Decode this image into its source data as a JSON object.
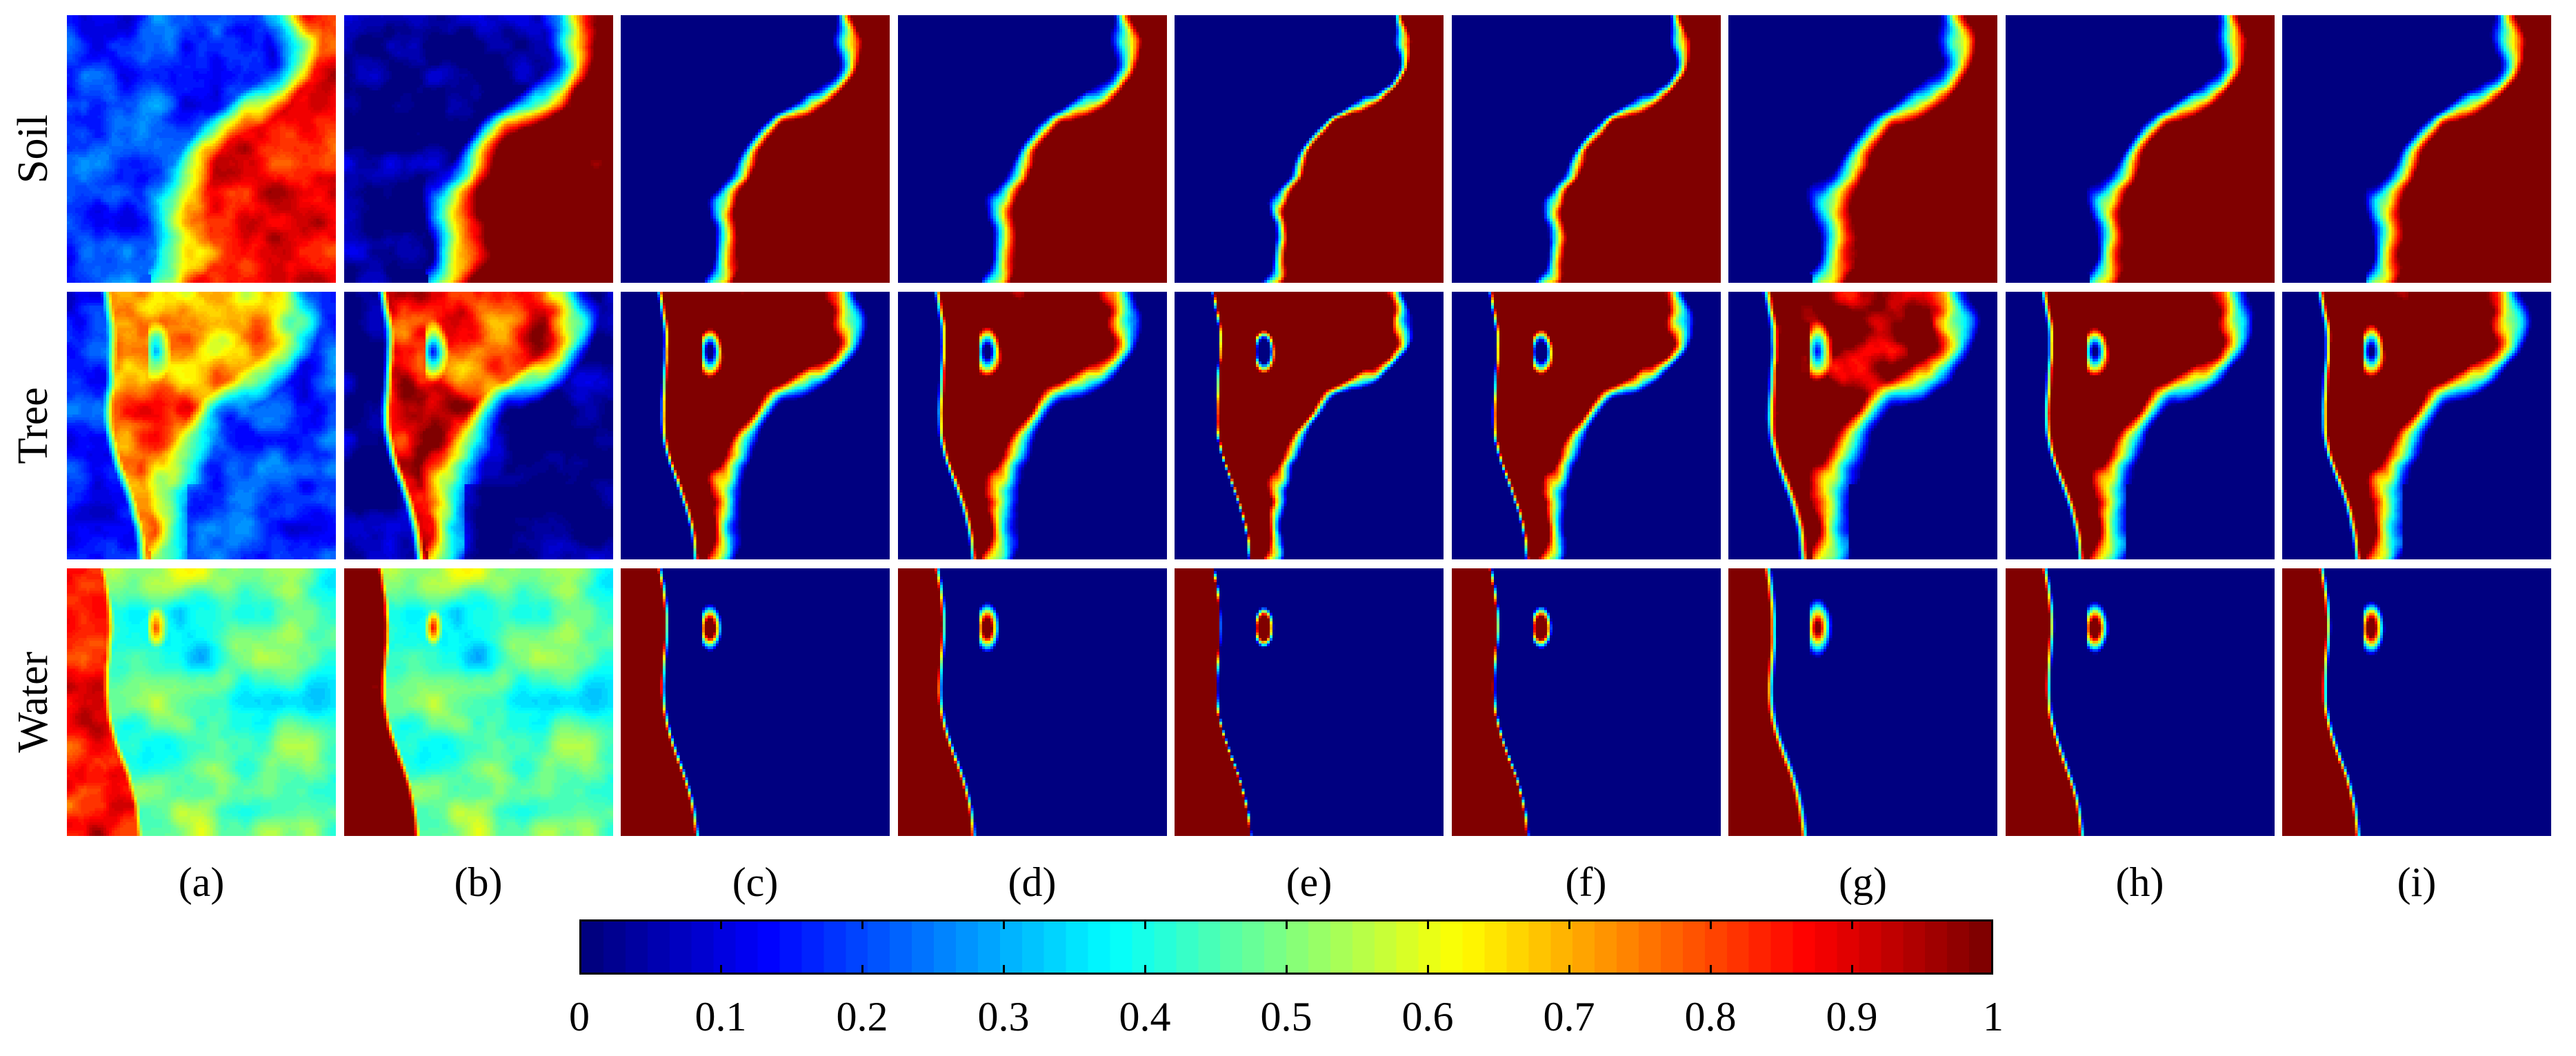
{
  "chart_data": {
    "type": "heatmap",
    "description_rows": [
      "Soil",
      "Tree",
      "Water"
    ],
    "rows": [
      "Soil",
      "Tree",
      "Water"
    ],
    "columns": [
      "(a)",
      "(b)",
      "(c)",
      "(d)",
      "(e)",
      "(f)",
      "(g)",
      "(h)",
      "(i)"
    ],
    "colormap": "jet",
    "colorbar": {
      "min": 0,
      "max": 1,
      "ticks": [
        "0",
        "0.1",
        "0.2",
        "0.3",
        "0.4",
        "0.5",
        "0.6",
        "0.7",
        "0.8",
        "0.9",
        "1"
      ],
      "levels": 64
    },
    "xlabel": "",
    "ylabel": ""
  }
}
